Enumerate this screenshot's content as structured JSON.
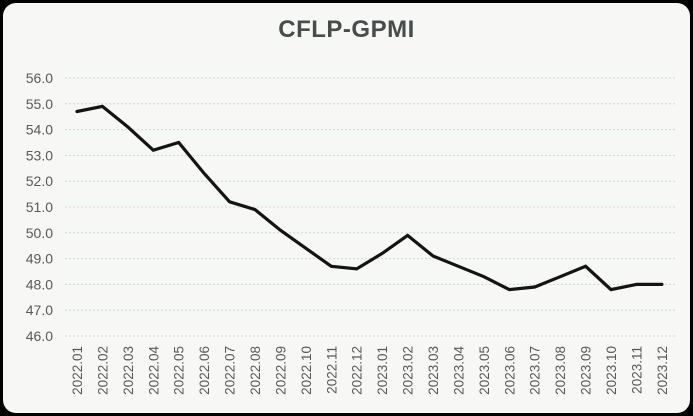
{
  "window": {
    "frame_color": "#000000",
    "card_color": "#f7f7f5"
  },
  "chart_data": {
    "type": "line",
    "title": "CFLP-GPMI",
    "x": [
      "2022.01",
      "2022.02",
      "2022.03",
      "2022.04",
      "2022.05",
      "2022.06",
      "2022.07",
      "2022.08",
      "2022.09",
      "2022.10",
      "2022.11",
      "2022.12",
      "2023.01",
      "2023.02",
      "2023.03",
      "2023.04",
      "2023.05",
      "2023.06",
      "2023.07",
      "2023.08",
      "2023.09",
      "2023.10",
      "2023.11",
      "2023.12"
    ],
    "series": [
      {
        "name": "CFLP-GPMI",
        "values": [
          54.7,
          54.9,
          54.1,
          53.2,
          53.5,
          52.3,
          51.2,
          50.9,
          50.1,
          49.4,
          48.7,
          48.6,
          49.2,
          49.9,
          49.1,
          48.7,
          48.3,
          47.8,
          47.9,
          48.3,
          48.7,
          47.8,
          48.0,
          48.0
        ]
      }
    ],
    "xlabel": "",
    "ylabel": "",
    "ylim": [
      46.0,
      56.0
    ],
    "y_ticks": [
      56.0,
      55.0,
      54.0,
      53.0,
      52.0,
      51.0,
      50.0,
      49.0,
      48.0,
      47.0,
      46.0
    ],
    "grid": "horizontal-dashed",
    "legend_position": "none",
    "line_color": "#141414",
    "grid_color": "#ccdcd6",
    "tick_label_color": "#595959",
    "title_color": "#474c4d"
  }
}
